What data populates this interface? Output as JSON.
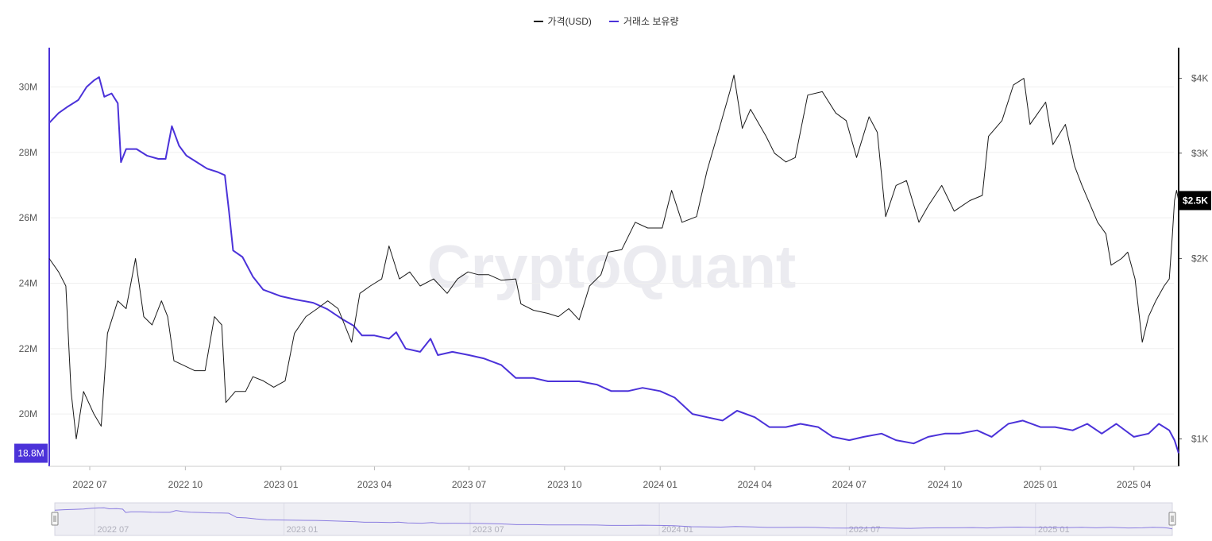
{
  "legend": {
    "price_label": "가격(USD)",
    "reserve_label": "거래소 보유량"
  },
  "watermark": "CryptoQuant",
  "colors": {
    "price": "#1a1a1a",
    "reserve": "#4b32d9",
    "grid": "#efefef",
    "navigator_bg": "#eeeef4",
    "last_price_badge": "#000000"
  },
  "badges": {
    "reserve_current": "18.8M",
    "price_current": "$2.5K"
  },
  "chart_data": {
    "type": "line",
    "title": "",
    "x_ticks": [
      "2022 07",
      "2022 10",
      "2023 01",
      "2023 04",
      "2023 07",
      "2023 10",
      "2024 01",
      "2024 04",
      "2024 07",
      "2024 10",
      "2025 01",
      "2025 04"
    ],
    "x_range": [
      "2022-05-23",
      "2025-05-14"
    ],
    "y_left": {
      "label": "거래소 보유량",
      "range": [
        18.4,
        31.2
      ],
      "ticks": [
        "20M",
        "22M",
        "24M",
        "26M",
        "28M",
        "30M"
      ]
    },
    "y_right": {
      "label": "가격(USD)",
      "scale": "log",
      "range": [
        900,
        4500
      ],
      "ticks": [
        "$1K",
        "$2K",
        "$3K",
        "$4K"
      ]
    },
    "grid": true,
    "legend_position": "top-center",
    "series": [
      {
        "name": "거래소 보유량",
        "axis": "left",
        "points": [
          [
            "2022-05-23",
            28.9
          ],
          [
            "2022-06-01",
            29.2
          ],
          [
            "2022-06-10",
            29.4
          ],
          [
            "2022-06-20",
            29.6
          ],
          [
            "2022-06-28",
            30.0
          ],
          [
            "2022-07-05",
            30.2
          ],
          [
            "2022-07-10",
            30.3
          ],
          [
            "2022-07-15",
            29.7
          ],
          [
            "2022-07-22",
            29.8
          ],
          [
            "2022-07-28",
            29.5
          ],
          [
            "2022-07-31",
            27.7
          ],
          [
            "2022-08-05",
            28.1
          ],
          [
            "2022-08-15",
            28.1
          ],
          [
            "2022-08-25",
            27.9
          ],
          [
            "2022-09-05",
            27.8
          ],
          [
            "2022-09-12",
            27.8
          ],
          [
            "2022-09-18",
            28.8
          ],
          [
            "2022-09-25",
            28.2
          ],
          [
            "2022-10-02",
            27.9
          ],
          [
            "2022-10-12",
            27.7
          ],
          [
            "2022-10-22",
            27.5
          ],
          [
            "2022-11-01",
            27.4
          ],
          [
            "2022-11-08",
            27.3
          ],
          [
            "2022-11-12",
            26.2
          ],
          [
            "2022-11-16",
            25.0
          ],
          [
            "2022-11-25",
            24.8
          ],
          [
            "2022-12-05",
            24.2
          ],
          [
            "2022-12-15",
            23.8
          ],
          [
            "2023-01-01",
            23.6
          ],
          [
            "2023-01-15",
            23.5
          ],
          [
            "2023-02-01",
            23.4
          ],
          [
            "2023-02-15",
            23.2
          ],
          [
            "2023-03-01",
            22.9
          ],
          [
            "2023-03-12",
            22.7
          ],
          [
            "2023-03-20",
            22.4
          ],
          [
            "2023-04-01",
            22.4
          ],
          [
            "2023-04-15",
            22.3
          ],
          [
            "2023-04-22",
            22.5
          ],
          [
            "2023-05-01",
            22.0
          ],
          [
            "2023-05-15",
            21.9
          ],
          [
            "2023-05-25",
            22.3
          ],
          [
            "2023-06-01",
            21.8
          ],
          [
            "2023-06-15",
            21.9
          ],
          [
            "2023-07-01",
            21.8
          ],
          [
            "2023-07-15",
            21.7
          ],
          [
            "2023-08-01",
            21.5
          ],
          [
            "2023-08-15",
            21.1
          ],
          [
            "2023-09-01",
            21.1
          ],
          [
            "2023-09-15",
            21.0
          ],
          [
            "2023-10-01",
            21.0
          ],
          [
            "2023-10-15",
            21.0
          ],
          [
            "2023-11-01",
            20.9
          ],
          [
            "2023-11-15",
            20.7
          ],
          [
            "2023-12-01",
            20.7
          ],
          [
            "2023-12-15",
            20.8
          ],
          [
            "2024-01-01",
            20.7
          ],
          [
            "2024-01-15",
            20.5
          ],
          [
            "2024-02-01",
            20.0
          ],
          [
            "2024-02-15",
            19.9
          ],
          [
            "2024-03-01",
            19.8
          ],
          [
            "2024-03-15",
            20.1
          ],
          [
            "2024-04-01",
            19.9
          ],
          [
            "2024-04-15",
            19.6
          ],
          [
            "2024-05-01",
            19.6
          ],
          [
            "2024-05-15",
            19.7
          ],
          [
            "2024-06-01",
            19.6
          ],
          [
            "2024-06-15",
            19.3
          ],
          [
            "2024-07-01",
            19.2
          ],
          [
            "2024-07-15",
            19.3
          ],
          [
            "2024-08-01",
            19.4
          ],
          [
            "2024-08-15",
            19.2
          ],
          [
            "2024-09-01",
            19.1
          ],
          [
            "2024-09-15",
            19.3
          ],
          [
            "2024-10-01",
            19.4
          ],
          [
            "2024-10-15",
            19.4
          ],
          [
            "2024-11-01",
            19.5
          ],
          [
            "2024-11-15",
            19.3
          ],
          [
            "2024-12-01",
            19.7
          ],
          [
            "2024-12-15",
            19.8
          ],
          [
            "2025-01-01",
            19.6
          ],
          [
            "2025-01-15",
            19.6
          ],
          [
            "2025-02-01",
            19.5
          ],
          [
            "2025-02-15",
            19.7
          ],
          [
            "2025-03-01",
            19.4
          ],
          [
            "2025-03-15",
            19.7
          ],
          [
            "2025-04-01",
            19.3
          ],
          [
            "2025-04-15",
            19.4
          ],
          [
            "2025-04-25",
            19.7
          ],
          [
            "2025-05-05",
            19.5
          ],
          [
            "2025-05-10",
            19.2
          ],
          [
            "2025-05-14",
            18.8
          ]
        ]
      },
      {
        "name": "가격(USD)",
        "axis": "right",
        "points": [
          [
            "2022-05-23",
            2000
          ],
          [
            "2022-06-01",
            1900
          ],
          [
            "2022-06-08",
            1800
          ],
          [
            "2022-06-13",
            1200
          ],
          [
            "2022-06-18",
            1000
          ],
          [
            "2022-06-25",
            1200
          ],
          [
            "2022-07-05",
            1100
          ],
          [
            "2022-07-12",
            1050
          ],
          [
            "2022-07-18",
            1500
          ],
          [
            "2022-07-28",
            1700
          ],
          [
            "2022-08-05",
            1650
          ],
          [
            "2022-08-14",
            2000
          ],
          [
            "2022-08-22",
            1600
          ],
          [
            "2022-08-30",
            1550
          ],
          [
            "2022-09-08",
            1700
          ],
          [
            "2022-09-14",
            1600
          ],
          [
            "2022-09-20",
            1350
          ],
          [
            "2022-09-28",
            1330
          ],
          [
            "2022-10-10",
            1300
          ],
          [
            "2022-10-20",
            1300
          ],
          [
            "2022-10-29",
            1600
          ],
          [
            "2022-11-05",
            1550
          ],
          [
            "2022-11-09",
            1150
          ],
          [
            "2022-11-18",
            1200
          ],
          [
            "2022-11-28",
            1200
          ],
          [
            "2022-12-05",
            1270
          ],
          [
            "2022-12-15",
            1250
          ],
          [
            "2022-12-25",
            1220
          ],
          [
            "2023-01-05",
            1250
          ],
          [
            "2023-01-14",
            1500
          ],
          [
            "2023-01-25",
            1600
          ],
          [
            "2023-02-05",
            1650
          ],
          [
            "2023-02-15",
            1700
          ],
          [
            "2023-02-25",
            1650
          ],
          [
            "2023-03-10",
            1450
          ],
          [
            "2023-03-18",
            1750
          ],
          [
            "2023-03-28",
            1800
          ],
          [
            "2023-04-08",
            1850
          ],
          [
            "2023-04-15",
            2100
          ],
          [
            "2023-04-25",
            1850
          ],
          [
            "2023-05-05",
            1900
          ],
          [
            "2023-05-15",
            1800
          ],
          [
            "2023-05-28",
            1850
          ],
          [
            "2023-06-10",
            1750
          ],
          [
            "2023-06-20",
            1850
          ],
          [
            "2023-06-30",
            1900
          ],
          [
            "2023-07-10",
            1880
          ],
          [
            "2023-07-20",
            1880
          ],
          [
            "2023-08-01",
            1840
          ],
          [
            "2023-08-15",
            1850
          ],
          [
            "2023-08-20",
            1680
          ],
          [
            "2023-09-01",
            1640
          ],
          [
            "2023-09-15",
            1620
          ],
          [
            "2023-09-25",
            1600
          ],
          [
            "2023-10-05",
            1650
          ],
          [
            "2023-10-15",
            1580
          ],
          [
            "2023-10-25",
            1800
          ],
          [
            "2023-11-05",
            1880
          ],
          [
            "2023-11-12",
            2050
          ],
          [
            "2023-11-25",
            2070
          ],
          [
            "2023-12-08",
            2300
          ],
          [
            "2023-12-20",
            2250
          ],
          [
            "2024-01-03",
            2250
          ],
          [
            "2024-01-12",
            2600
          ],
          [
            "2024-01-22",
            2300
          ],
          [
            "2024-02-05",
            2350
          ],
          [
            "2024-02-15",
            2800
          ],
          [
            "2024-02-28",
            3350
          ],
          [
            "2024-03-08",
            3800
          ],
          [
            "2024-03-12",
            4050
          ],
          [
            "2024-03-20",
            3300
          ],
          [
            "2024-03-28",
            3550
          ],
          [
            "2024-04-12",
            3200
          ],
          [
            "2024-04-20",
            3000
          ],
          [
            "2024-05-01",
            2900
          ],
          [
            "2024-05-10",
            2950
          ],
          [
            "2024-05-22",
            3750
          ],
          [
            "2024-06-05",
            3800
          ],
          [
            "2024-06-18",
            3500
          ],
          [
            "2024-06-28",
            3400
          ],
          [
            "2024-07-08",
            2950
          ],
          [
            "2024-07-20",
            3450
          ],
          [
            "2024-07-28",
            3250
          ],
          [
            "2024-08-05",
            2350
          ],
          [
            "2024-08-15",
            2650
          ],
          [
            "2024-08-25",
            2700
          ],
          [
            "2024-09-06",
            2300
          ],
          [
            "2024-09-15",
            2450
          ],
          [
            "2024-09-28",
            2650
          ],
          [
            "2024-10-10",
            2400
          ],
          [
            "2024-10-25",
            2500
          ],
          [
            "2024-11-06",
            2550
          ],
          [
            "2024-11-12",
            3200
          ],
          [
            "2024-11-25",
            3400
          ],
          [
            "2024-12-06",
            3900
          ],
          [
            "2024-12-16",
            4000
          ],
          [
            "2024-12-22",
            3350
          ],
          [
            "2025-01-06",
            3650
          ],
          [
            "2025-01-13",
            3100
          ],
          [
            "2025-01-25",
            3350
          ],
          [
            "2025-02-03",
            2850
          ],
          [
            "2025-02-10",
            2650
          ],
          [
            "2025-02-25",
            2300
          ],
          [
            "2025-03-05",
            2200
          ],
          [
            "2025-03-10",
            1950
          ],
          [
            "2025-03-20",
            2000
          ],
          [
            "2025-03-26",
            2050
          ],
          [
            "2025-04-02",
            1850
          ],
          [
            "2025-04-09",
            1450
          ],
          [
            "2025-04-15",
            1600
          ],
          [
            "2025-04-22",
            1700
          ],
          [
            "2025-04-30",
            1800
          ],
          [
            "2025-05-05",
            1850
          ],
          [
            "2025-05-08",
            2200
          ],
          [
            "2025-05-10",
            2500
          ],
          [
            "2025-05-12",
            2600
          ],
          [
            "2025-05-14",
            2500
          ]
        ]
      }
    ]
  }
}
